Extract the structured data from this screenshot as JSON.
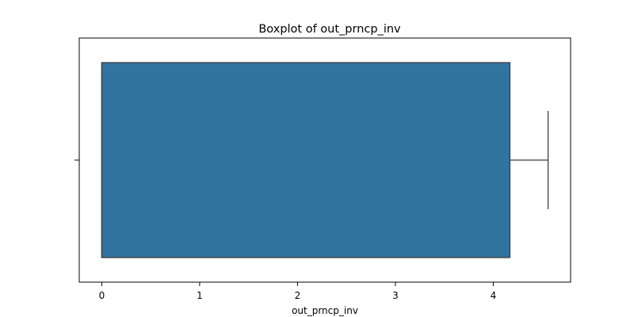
{
  "chart_data": {
    "type": "boxplot",
    "title": "Boxplot of out_prncp_inv",
    "xlabel": "out_prncp_inv",
    "ylabel": "",
    "orientation": "horizontal",
    "xlim": [
      -0.23,
      4.79
    ],
    "xticks": [
      0,
      1,
      2,
      3,
      4
    ],
    "grid": false,
    "legend": "none",
    "box": {
      "min": 0,
      "q1": 0,
      "median": 0,
      "q3": 4.17,
      "max": 4.56
    },
    "colors": {
      "box_fill": "#3274a1",
      "edge": "#3f3f3f",
      "axes": "#000000"
    }
  }
}
